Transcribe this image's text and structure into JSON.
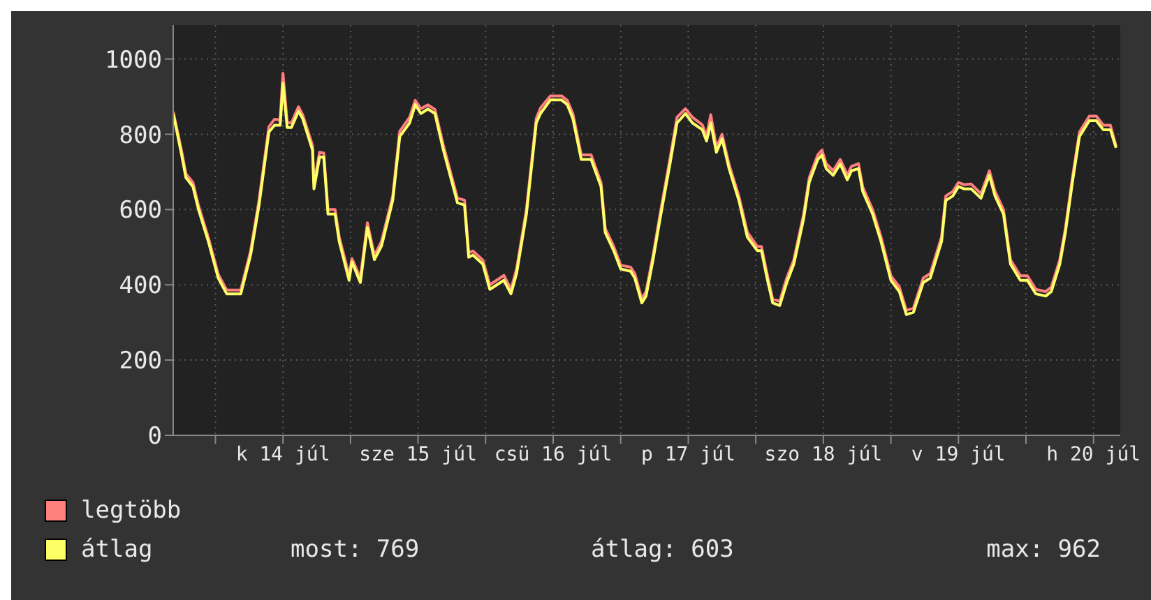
{
  "chart_data": {
    "type": "line",
    "xlim": [
      "--07-13T16:30",
      "--07-20T16:45"
    ],
    "xticks": [
      {
        "value": "--07-14T00:00",
        "label": null
      },
      {
        "value": "--07-14T12:00",
        "label": "k 14 júl"
      },
      {
        "value": "--07-15T00:00",
        "label": null
      },
      {
        "value": "--07-15T12:00",
        "label": "sze 15 júl"
      },
      {
        "value": "--07-16T00:00",
        "label": null
      },
      {
        "value": "--07-16T12:00",
        "label": "csü 16 júl"
      },
      {
        "value": "--07-17T00:00",
        "label": null
      },
      {
        "value": "--07-17T12:00",
        "label": "p 17 júl"
      },
      {
        "value": "--07-18T00:00",
        "label": null
      },
      {
        "value": "--07-18T12:00",
        "label": "szo 18 júl"
      },
      {
        "value": "--07-19T00:00",
        "label": null
      },
      {
        "value": "--07-19T12:00",
        "label": "v 19 júl"
      },
      {
        "value": "--07-20T00:00",
        "label": null
      },
      {
        "value": "--07-20T12:00",
        "label": "h 20 júl"
      }
    ],
    "ylim": [
      0,
      1090
    ],
    "yticks": [
      0,
      200,
      400,
      600,
      800,
      1000
    ],
    "grid": true,
    "legend": "bottom left",
    "marker": "none",
    "line_style": "solid",
    "annotations": [
      "most: 769",
      "átlag: 603",
      "max: 962"
    ],
    "x": [
      "--07-13T16:30",
      "--07-13T18:00",
      "--07-13T18:45",
      "--07-13T20:00",
      "--07-13T21:00",
      "--07-13T22:45",
      "--07-14T00:30",
      "--07-14T02:00",
      "--07-14T04:30",
      "--07-14T06:15",
      "--07-14T07:45",
      "--07-14T09:30",
      "--07-14T10:30",
      "--07-14T11:30",
      "--07-14T12:00",
      "--07-14T12:45",
      "--07-14T13:30",
      "--07-14T14:45",
      "--07-14T15:30",
      "--07-14T17:15",
      "--07-14T17:30",
      "--07-14T18:30",
      "--07-14T19:15",
      "--07-14T20:00",
      "--07-14T21:15",
      "--07-14T22:00",
      "--07-14T23:45",
      "--07-15T00:15",
      "--07-15T01:45",
      "--07-15T03:00",
      "--07-15T04:15",
      "--07-15T05:30",
      "--07-15T07:30",
      "--07-15T08:45",
      "--07-15T10:30",
      "--07-15T11:30",
      "--07-15T12:30",
      "--07-15T13:45",
      "--07-15T15:00",
      "--07-15T16:30",
      "--07-15T19:00",
      "--07-15T20:15",
      "--07-15T21:00",
      "--07-15T21:45",
      "--07-15T23:30",
      "--07-16T00:45",
      "--07-16T03:15",
      "--07-16T04:30",
      "--07-16T05:30",
      "--07-16T07:15",
      "--07-16T09:00",
      "--07-16T09:45",
      "--07-16T11:30",
      "--07-16T13:30",
      "--07-16T14:30",
      "--07-16T15:30",
      "--07-16T17:00",
      "--07-16T18:45",
      "--07-16T20:30",
      "--07-16T21:15",
      "--07-16T22:45",
      "--07-17T00:00",
      "--07-17T01:45",
      "--07-17T02:30",
      "--07-17T03:45",
      "--07-17T04:30",
      "--07-17T05:45",
      "--07-17T07:00",
      "--07-17T08:45",
      "--07-17T10:00",
      "--07-17T11:30",
      "--07-17T12:45",
      "--07-17T14:30",
      "--07-17T15:15",
      "--07-17T16:00",
      "--07-17T17:00",
      "--07-17T18:00",
      "--07-17T19:15",
      "--07-17T21:00",
      "--07-17T22:30",
      "--07-18T00:15",
      "--07-18T01:00",
      "--07-18T02:00",
      "--07-18T03:00",
      "--07-18T04:15",
      "--07-18T05:30",
      "--07-18T06:45",
      "--07-18T08:30",
      "--07-18T09:30",
      "--07-18T11:00",
      "--07-18T11:45",
      "--07-18T12:30",
      "--07-18T13:45",
      "--07-18T15:00",
      "--07-18T16:15",
      "--07-18T17:00",
      "--07-18T18:15",
      "--07-18T19:00",
      "--07-18T20:45",
      "--07-18T22:15",
      "--07-19T00:00",
      "--07-19T01:30",
      "--07-19T02:45",
      "--07-19T04:00",
      "--07-19T05:45",
      "--07-19T07:00",
      "--07-19T09:00",
      "--07-19T09:45",
      "--07-19T11:00",
      "--07-19T12:00",
      "--07-19T13:00",
      "--07-19T14:15",
      "--07-19T16:00",
      "--07-19T16:45",
      "--07-19T17:30",
      "--07-19T18:30",
      "--07-19T20:00",
      "--07-19T21:15",
      "--07-19T23:00",
      "--07-20T00:15",
      "--07-20T01:45",
      "--07-20T03:30",
      "--07-20T04:30",
      "--07-20T06:00",
      "--07-20T07:00",
      "--07-20T08:15",
      "--07-20T09:30",
      "--07-20T11:15",
      "--07-20T12:30",
      "--07-20T13:45",
      "--07-20T15:00",
      "--07-20T16:00"
    ],
    "series": [
      {
        "name": "legtöbb",
        "color": "#ff7f7f",
        "values": [
          860,
          755,
          695,
          672,
          610,
          525,
          428,
          386,
          386,
          490,
          625,
          820,
          840,
          838,
          962,
          832,
          830,
          873,
          852,
          770,
          668,
          752,
          750,
          600,
          600,
          527,
          424,
          470,
          418,
          565,
          478,
          515,
          636,
          808,
          845,
          890,
          868,
          878,
          866,
          770,
          630,
          625,
          485,
          490,
          466,
          400,
          425,
          388,
          442,
          600,
          842,
          870,
          902,
          902,
          890,
          855,
          745,
          745,
          672,
          550,
          502,
          452,
          447,
          430,
          362,
          382,
          478,
          588,
          735,
          845,
          868,
          845,
          825,
          795,
          852,
          765,
          800,
          720,
          635,
          540,
          502,
          502,
          430,
          362,
          356,
          418,
          466,
          588,
          685,
          745,
          758,
          722,
          703,
          733,
          692,
          715,
          722,
          660,
          600,
          527,
          424,
          394,
          332,
          338,
          418,
          430,
          527,
          636,
          648,
          672,
          666,
          668,
          642,
          672,
          703,
          648,
          600,
          466,
          424,
          424,
          388,
          382,
          394,
          466,
          550,
          685,
          806,
          848,
          848,
          824,
          824,
          769
        ]
      },
      {
        "name": "átlag",
        "color": "#ffff66",
        "values": [
          855,
          745,
          685,
          661,
          600,
          515,
          418,
          376,
          376,
          479,
          612,
          806,
          824,
          824,
          935,
          818,
          818,
          861,
          842,
          758,
          655,
          739,
          739,
          588,
          588,
          515,
          412,
          461,
          406,
          552,
          467,
          503,
          624,
          794,
          830,
          879,
          855,
          867,
          855,
          758,
          618,
          612,
          473,
          479,
          455,
          388,
          412,
          376,
          430,
          588,
          830,
          855,
          891,
          891,
          879,
          842,
          733,
          733,
          661,
          539,
          491,
          442,
          436,
          418,
          352,
          370,
          467,
          576,
          721,
          830,
          855,
          830,
          812,
          782,
          830,
          752,
          788,
          709,
          624,
          527,
          491,
          491,
          418,
          352,
          345,
          406,
          455,
          576,
          673,
          733,
          745,
          709,
          691,
          721,
          679,
          703,
          709,
          648,
          588,
          515,
          412,
          382,
          321,
          327,
          406,
          418,
          515,
          624,
          636,
          661,
          655,
          655,
          630,
          661,
          691,
          636,
          588,
          455,
          412,
          412,
          376,
          370,
          382,
          455,
          539,
          673,
          794,
          836,
          836,
          812,
          812,
          764
        ]
      }
    ]
  }
}
